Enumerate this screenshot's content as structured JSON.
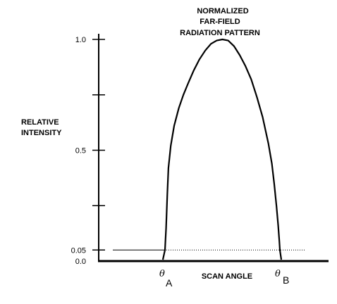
{
  "chart_data": {
    "type": "line",
    "title_lines": [
      "NORMALIZED",
      "FAR-FIELD",
      "RADIATION  PATTERN"
    ],
    "ylabel_lines": [
      "RELATIVE",
      "INTENSITY"
    ],
    "xlabel": "SCAN  ANGLE",
    "ylim": [
      0,
      1.0
    ],
    "y_tick_values": [
      0.0,
      0.05,
      0.25,
      0.5,
      0.75,
      1.0
    ],
    "y_tick_labels": [
      {
        "value": 1.0,
        "label": "1.0"
      },
      {
        "value": 0.5,
        "label": "0.5"
      },
      {
        "value": 0.05,
        "label": "0.05"
      },
      {
        "value": 0.0,
        "label": "0.0"
      }
    ],
    "threshold": {
      "value": 0.05
    },
    "markers": [
      {
        "symbol": "θ",
        "sub": "A"
      },
      {
        "symbol": "θ",
        "sub": "B"
      }
    ],
    "series": [
      {
        "x": [
          0.0,
          0.01,
          0.02,
          0.03,
          0.05,
          0.08,
          0.12,
          0.16,
          0.2,
          0.25,
          0.3,
          0.35,
          0.4,
          0.45,
          0.5,
          0.55,
          0.6,
          0.65,
          0.7,
          0.75,
          0.8,
          0.85,
          0.9,
          0.93,
          0.95,
          0.97,
          0.985,
          0.995,
          1.0
        ],
        "y": [
          0.05,
          0.15,
          0.3,
          0.42,
          0.52,
          0.61,
          0.69,
          0.75,
          0.8,
          0.86,
          0.91,
          0.95,
          0.98,
          0.995,
          1.0,
          0.995,
          0.97,
          0.93,
          0.88,
          0.82,
          0.74,
          0.65,
          0.53,
          0.44,
          0.35,
          0.25,
          0.16,
          0.09,
          0.05
        ]
      }
    ]
  }
}
